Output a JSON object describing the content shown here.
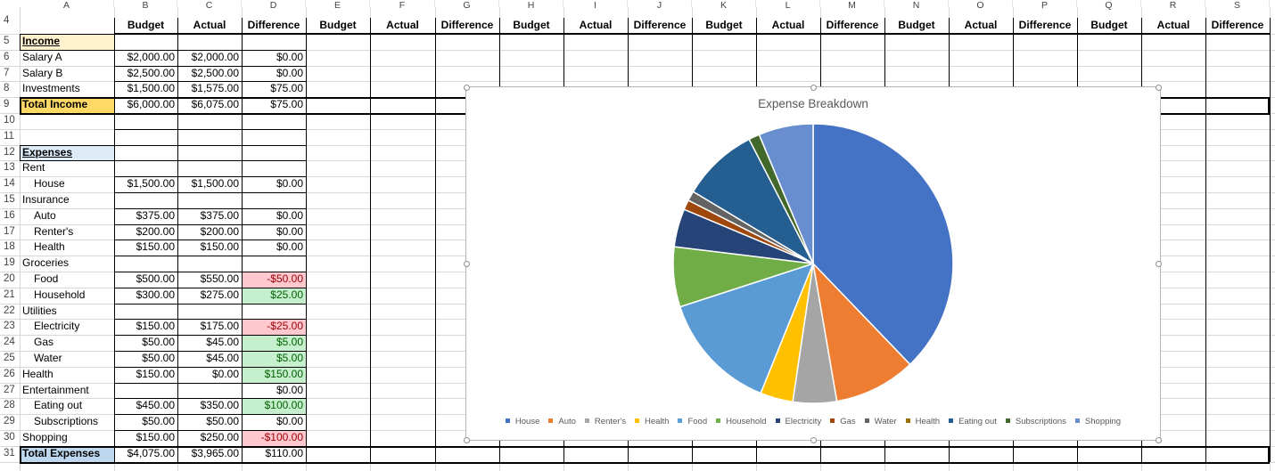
{
  "columns": [
    "A",
    "B",
    "C",
    "D",
    "E",
    "F",
    "G",
    "H",
    "I",
    "J",
    "K",
    "L",
    "M",
    "N",
    "O",
    "P",
    "Q",
    "R",
    "S"
  ],
  "header_row": {
    "row_number": "4",
    "labels": [
      "",
      "Budget",
      "Actual",
      "Difference",
      "Budget",
      "Actual",
      "Difference",
      "Budget",
      "Actual",
      "Difference",
      "Budget",
      "Actual",
      "Difference",
      "Budget",
      "Actual",
      "Difference",
      "Budget",
      "Actual",
      "Difference"
    ]
  },
  "rows": [
    {
      "n": "5",
      "label": "Income",
      "indent": false,
      "style": "income-header",
      "b": "",
      "c": "",
      "d": ""
    },
    {
      "n": "6",
      "label": "Salary A",
      "indent": false,
      "b": "$2,000.00",
      "c": "$2,000.00",
      "d": "$0.00"
    },
    {
      "n": "7",
      "label": "Salary B",
      "indent": false,
      "b": "$2,500.00",
      "c": "$2,500.00",
      "d": "$0.00"
    },
    {
      "n": "8",
      "label": "Investments",
      "indent": false,
      "b": "$1,500.00",
      "c": "$1,575.00",
      "d": "$75.00"
    },
    {
      "n": "9",
      "label": "Total Income",
      "indent": false,
      "style": "total-income",
      "b": "$6,000.00",
      "c": "$6,075.00",
      "d": "$75.00"
    },
    {
      "n": "10",
      "label": "",
      "b": "",
      "c": "",
      "d": ""
    },
    {
      "n": "11",
      "label": "",
      "b": "",
      "c": "",
      "d": ""
    },
    {
      "n": "12",
      "label": "Expenses",
      "indent": false,
      "style": "expenses-header",
      "b": "",
      "c": "",
      "d": ""
    },
    {
      "n": "13",
      "label": "Rent",
      "indent": false,
      "b": "",
      "c": "",
      "d": ""
    },
    {
      "n": "14",
      "label": "House",
      "indent": true,
      "b": "$1,500.00",
      "c": "$1,500.00",
      "d": "$0.00"
    },
    {
      "n": "15",
      "label": "Insurance",
      "indent": false,
      "b": "",
      "c": "",
      "d": ""
    },
    {
      "n": "16",
      "label": "Auto",
      "indent": true,
      "b": "$375.00",
      "c": "$375.00",
      "d": "$0.00"
    },
    {
      "n": "17",
      "label": "Renter's",
      "indent": true,
      "b": "$200.00",
      "c": "$200.00",
      "d": "$0.00"
    },
    {
      "n": "18",
      "label": "Health",
      "indent": true,
      "b": "$150.00",
      "c": "$150.00",
      "d": "$0.00"
    },
    {
      "n": "19",
      "label": "Groceries",
      "indent": false,
      "b": "",
      "c": "",
      "d": ""
    },
    {
      "n": "20",
      "label": "Food",
      "indent": true,
      "b": "$500.00",
      "c": "$550.00",
      "d": "-$50.00",
      "d_state": "negative"
    },
    {
      "n": "21",
      "label": "Household",
      "indent": true,
      "b": "$300.00",
      "c": "$275.00",
      "d": "$25.00",
      "d_state": "positive"
    },
    {
      "n": "22",
      "label": "Utilities",
      "indent": false,
      "b": "",
      "c": "",
      "d": ""
    },
    {
      "n": "23",
      "label": "Electricity",
      "indent": true,
      "b": "$150.00",
      "c": "$175.00",
      "d": "-$25.00",
      "d_state": "negative"
    },
    {
      "n": "24",
      "label": "Gas",
      "indent": true,
      "b": "$50.00",
      "c": "$45.00",
      "d": "$5.00",
      "d_state": "positive"
    },
    {
      "n": "25",
      "label": "Water",
      "indent": true,
      "b": "$50.00",
      "c": "$45.00",
      "d": "$5.00",
      "d_state": "positive"
    },
    {
      "n": "26",
      "label": "Health",
      "indent": false,
      "b": "$150.00",
      "c": "$0.00",
      "d": "$150.00",
      "d_state": "positive"
    },
    {
      "n": "27",
      "label": "Entertainment",
      "indent": false,
      "b": "",
      "c": "",
      "d": "$0.00"
    },
    {
      "n": "28",
      "label": "Eating out",
      "indent": true,
      "b": "$450.00",
      "c": "$350.00",
      "d": "$100.00",
      "d_state": "positive"
    },
    {
      "n": "29",
      "label": "Subscriptions",
      "indent": true,
      "b": "$50.00",
      "c": "$50.00",
      "d": "$0.00"
    },
    {
      "n": "30",
      "label": "Shopping",
      "indent": false,
      "b": "$150.00",
      "c": "$250.00",
      "d": "-$100.00",
      "d_state": "negative"
    },
    {
      "n": "31",
      "label": "Total Expenses",
      "indent": false,
      "style": "total-expenses",
      "b": "$4,075.00",
      "c": "$3,965.00",
      "d": "$110.00"
    }
  ],
  "colors": {
    "income_fill": "#fff2cc",
    "total_income_fill": "#ffd966",
    "expenses_fill": "#ddebf7",
    "total_expenses_fill": "#bdd7ee",
    "negative_fill": "#ffc7ce",
    "negative_text": "#9c0006",
    "positive_fill": "#c6efce",
    "positive_text": "#006100"
  },
  "chart_data": {
    "type": "pie",
    "title": "Expense Breakdown",
    "legend_position": "bottom",
    "categories": [
      "House",
      "Auto",
      "Renter's",
      "Health",
      "Food",
      "Household",
      "Electricity",
      "Gas",
      "Water",
      "Health",
      "Eating out",
      "Subscriptions",
      "Shopping"
    ],
    "values": [
      1500,
      375,
      200,
      150,
      550,
      275,
      175,
      45,
      45,
      0,
      350,
      50,
      250
    ],
    "colors": [
      "#4472c4",
      "#ed7d31",
      "#a5a5a5",
      "#ffc000",
      "#5b9bd5",
      "#70ad47",
      "#264478",
      "#9e480e",
      "#636363",
      "#997300",
      "#255e91",
      "#43682b",
      "#698ed0"
    ]
  }
}
